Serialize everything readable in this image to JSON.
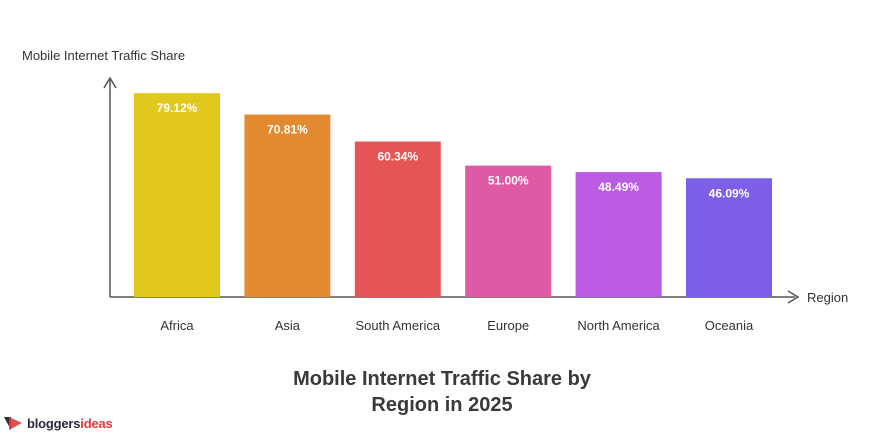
{
  "chart_data": {
    "type": "bar",
    "title_lines": [
      "Mobile Internet Traffic Share by",
      "Region in 2025"
    ],
    "ylabel": "Mobile Internet Traffic Share",
    "xlabel": "Region",
    "ylim": [
      0,
      85
    ],
    "grid": false,
    "legend": "none",
    "categories": [
      "Africa",
      "Asia",
      "South America",
      "Europe",
      "North America",
      "Oceania"
    ],
    "values": [
      79.12,
      70.81,
      60.34,
      51.0,
      48.49,
      46.09
    ],
    "value_labels": [
      "79.12%",
      "70.81%",
      "60.34%",
      "51.00%",
      "48.49%",
      "46.09%"
    ],
    "colors": [
      "#e2c81d",
      "#e38a31",
      "#e55555",
      "#de5aa5",
      "#bb5ae3",
      "#7d5ee7"
    ]
  },
  "brand": {
    "part1": "bloggers",
    "part2": "ideas",
    "icon": "brand-arrow-icon",
    "colors": {
      "dark": "#2b2b3a",
      "accent": "#e23a3a"
    }
  }
}
